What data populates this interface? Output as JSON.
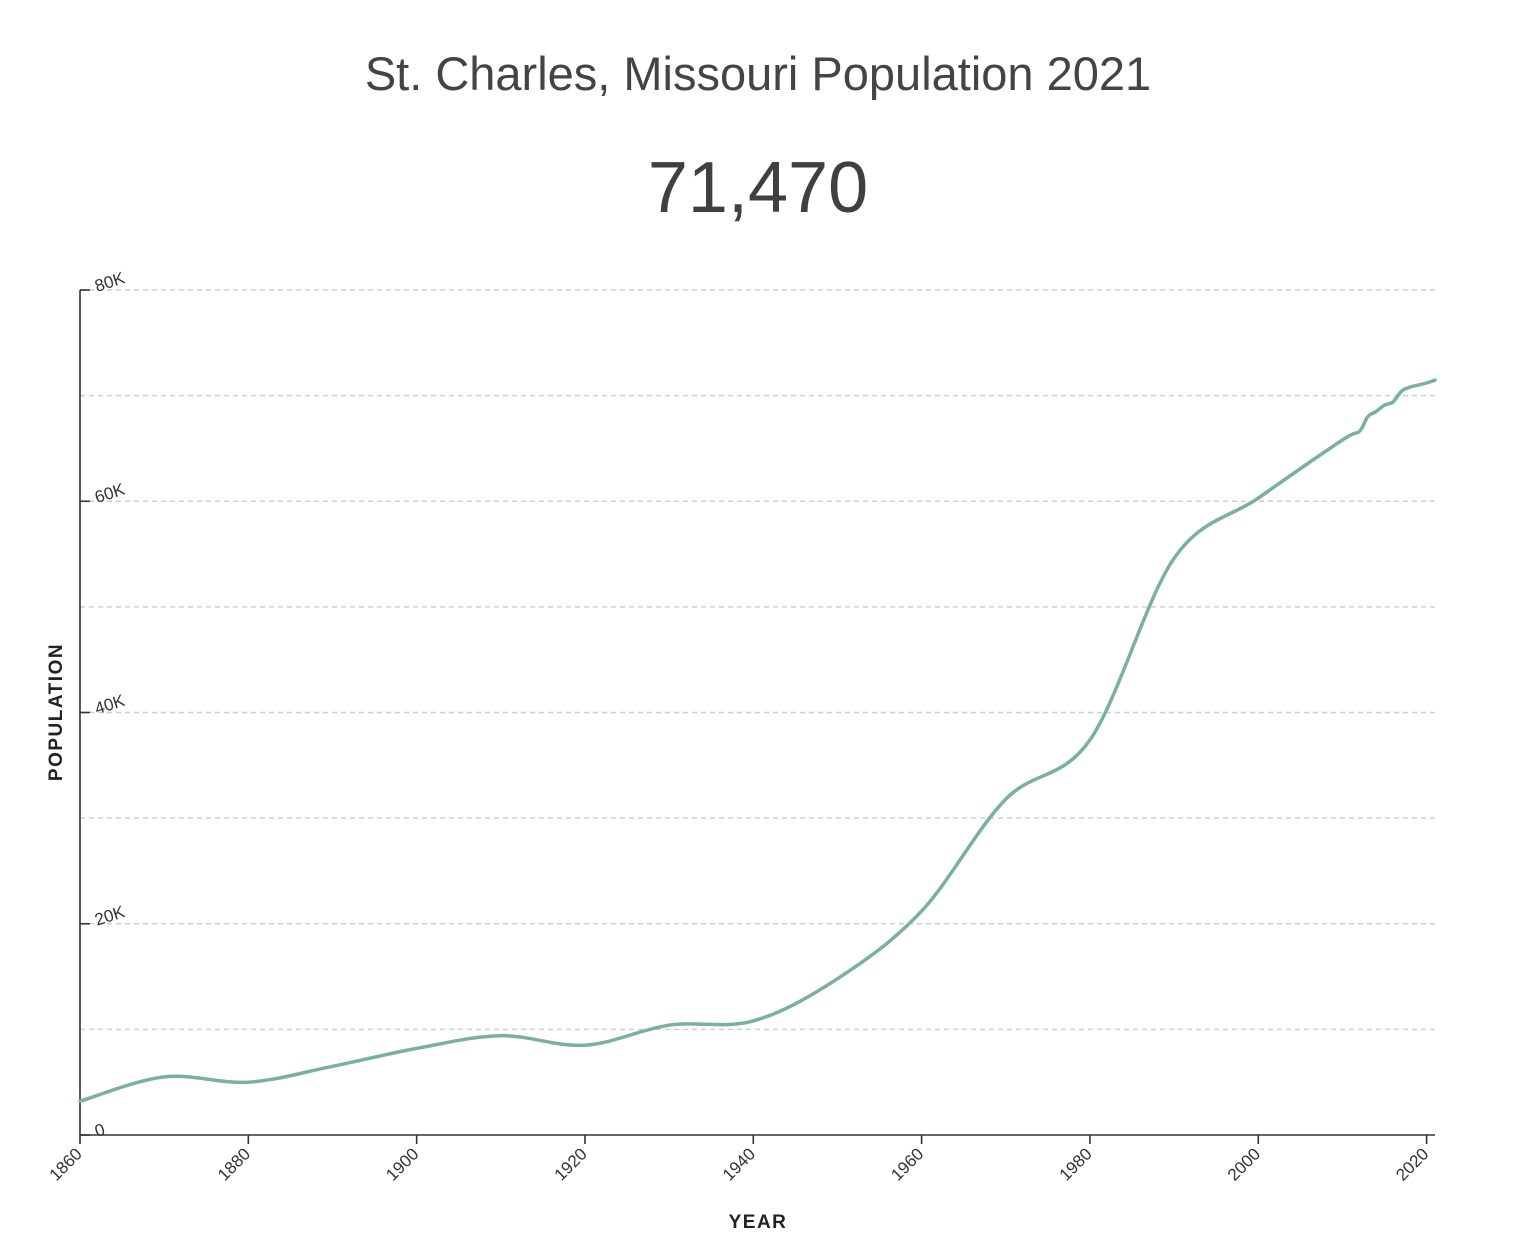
{
  "header": {
    "title": "St. Charles, Missouri Population 2021",
    "value": "71,470"
  },
  "colors": {
    "line": "#79b0a0",
    "grid": "#cfcfcf",
    "axis": "#333333",
    "text": "#404040"
  },
  "chart_data": {
    "type": "line",
    "title": "St. Charles, Missouri Population 2021",
    "xlabel": "YEAR",
    "ylabel": "POPULATION",
    "xlim": [
      1860,
      2021
    ],
    "ylim": [
      0,
      80000
    ],
    "x_ticks": [
      1860,
      1880,
      1900,
      1920,
      1940,
      1960,
      1980,
      2000,
      2020
    ],
    "x_tick_labels": [
      "1860",
      "1880",
      "1900",
      "1920",
      "1940",
      "1960",
      "1980",
      "2000",
      "2020"
    ],
    "y_ticks": [
      0,
      20000,
      40000,
      60000,
      80000
    ],
    "y_tick_labels": [
      "0",
      "20K",
      "40K",
      "60K",
      "80K"
    ],
    "y_grid": [
      10000,
      20000,
      30000,
      40000,
      50000,
      60000,
      70000,
      80000
    ],
    "grid": true,
    "series": [
      {
        "x": [
          1860,
          1870,
          1880,
          1890,
          1900,
          1910,
          1920,
          1930,
          1940,
          1950,
          1960,
          1970,
          1980,
          1990,
          2000,
          2010,
          2012,
          2013,
          2014,
          2015,
          2016,
          2017,
          2018,
          2019,
          2020,
          2021
        ],
        "y": [
          3200,
          5500,
          5000,
          6500,
          8200,
          9400,
          8500,
          10400,
          10800,
          14800,
          21200,
          31800,
          37400,
          54600,
          60300,
          65800,
          66600,
          68000,
          68500,
          69100,
          69400,
          70400,
          70800,
          71000,
          71200,
          71470
        ]
      }
    ]
  }
}
